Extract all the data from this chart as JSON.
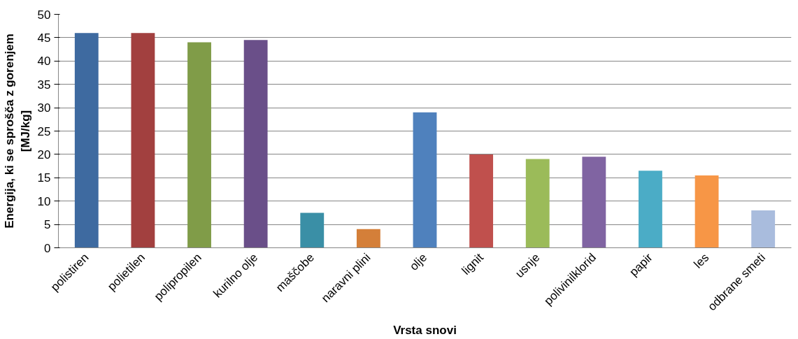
{
  "chart_data": {
    "type": "bar",
    "xlabel": "Vrsta snovi",
    "ylabel": "Energija, ki se sprošča z gorenjem\n[MJ/kg]",
    "categories": [
      "polistiren",
      "polietilen",
      "polipropilen",
      "kurilno olje",
      "maščobe",
      "naravni plini",
      "olje",
      "lignit",
      "usnje",
      "polivinilklorid",
      "papir",
      "les",
      "odbrane smeti"
    ],
    "values": [
      46,
      46,
      44,
      44.5,
      7.5,
      4,
      29,
      20,
      19,
      19.5,
      16.5,
      15.5,
      8
    ],
    "colors": [
      "#3e6aa0",
      "#a2403f",
      "#809c48",
      "#6a4f89",
      "#3a8fa6",
      "#d47f39",
      "#4f81bd",
      "#c0504d",
      "#9bbb59",
      "#8064a2",
      "#4bacc6",
      "#f79646",
      "#a9bcdd"
    ],
    "ylim": [
      0,
      50
    ],
    "yticks": [
      0,
      5,
      10,
      15,
      20,
      25,
      30,
      35,
      40,
      45,
      50
    ],
    "grid": "y"
  }
}
